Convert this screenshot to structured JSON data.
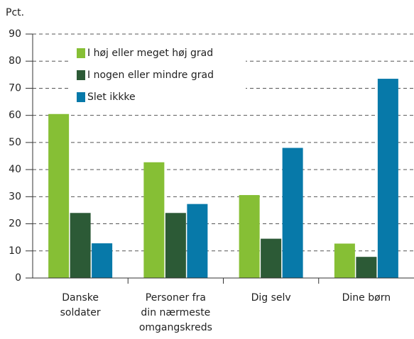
{
  "chart_data": {
    "type": "bar",
    "y_label": "Pct.",
    "categories": [
      [
        "Danske",
        "soldater"
      ],
      [
        "Personer fra",
        "din nærmeste",
        "omgangskreds"
      ],
      [
        "Dig selv"
      ],
      [
        "Dine børn"
      ]
    ],
    "series": [
      {
        "name": "I høj eller meget høj grad",
        "color": "#86bf35",
        "values": [
          60.5,
          42.7,
          30.6,
          12.7
        ]
      },
      {
        "name": "I nogen eller mindre grad",
        "color": "#2c5a36",
        "values": [
          24,
          24,
          14.5,
          7.8
        ]
      },
      {
        "name": "Slet ikkke",
        "color": "#0779a9",
        "values": [
          12.8,
          27.3,
          48,
          73.5
        ]
      }
    ],
    "ylim": [
      0,
      90
    ],
    "yticks": [
      0,
      10,
      20,
      30,
      40,
      50,
      60,
      70,
      80,
      90
    ],
    "grid": true,
    "legend": "upper left"
  }
}
